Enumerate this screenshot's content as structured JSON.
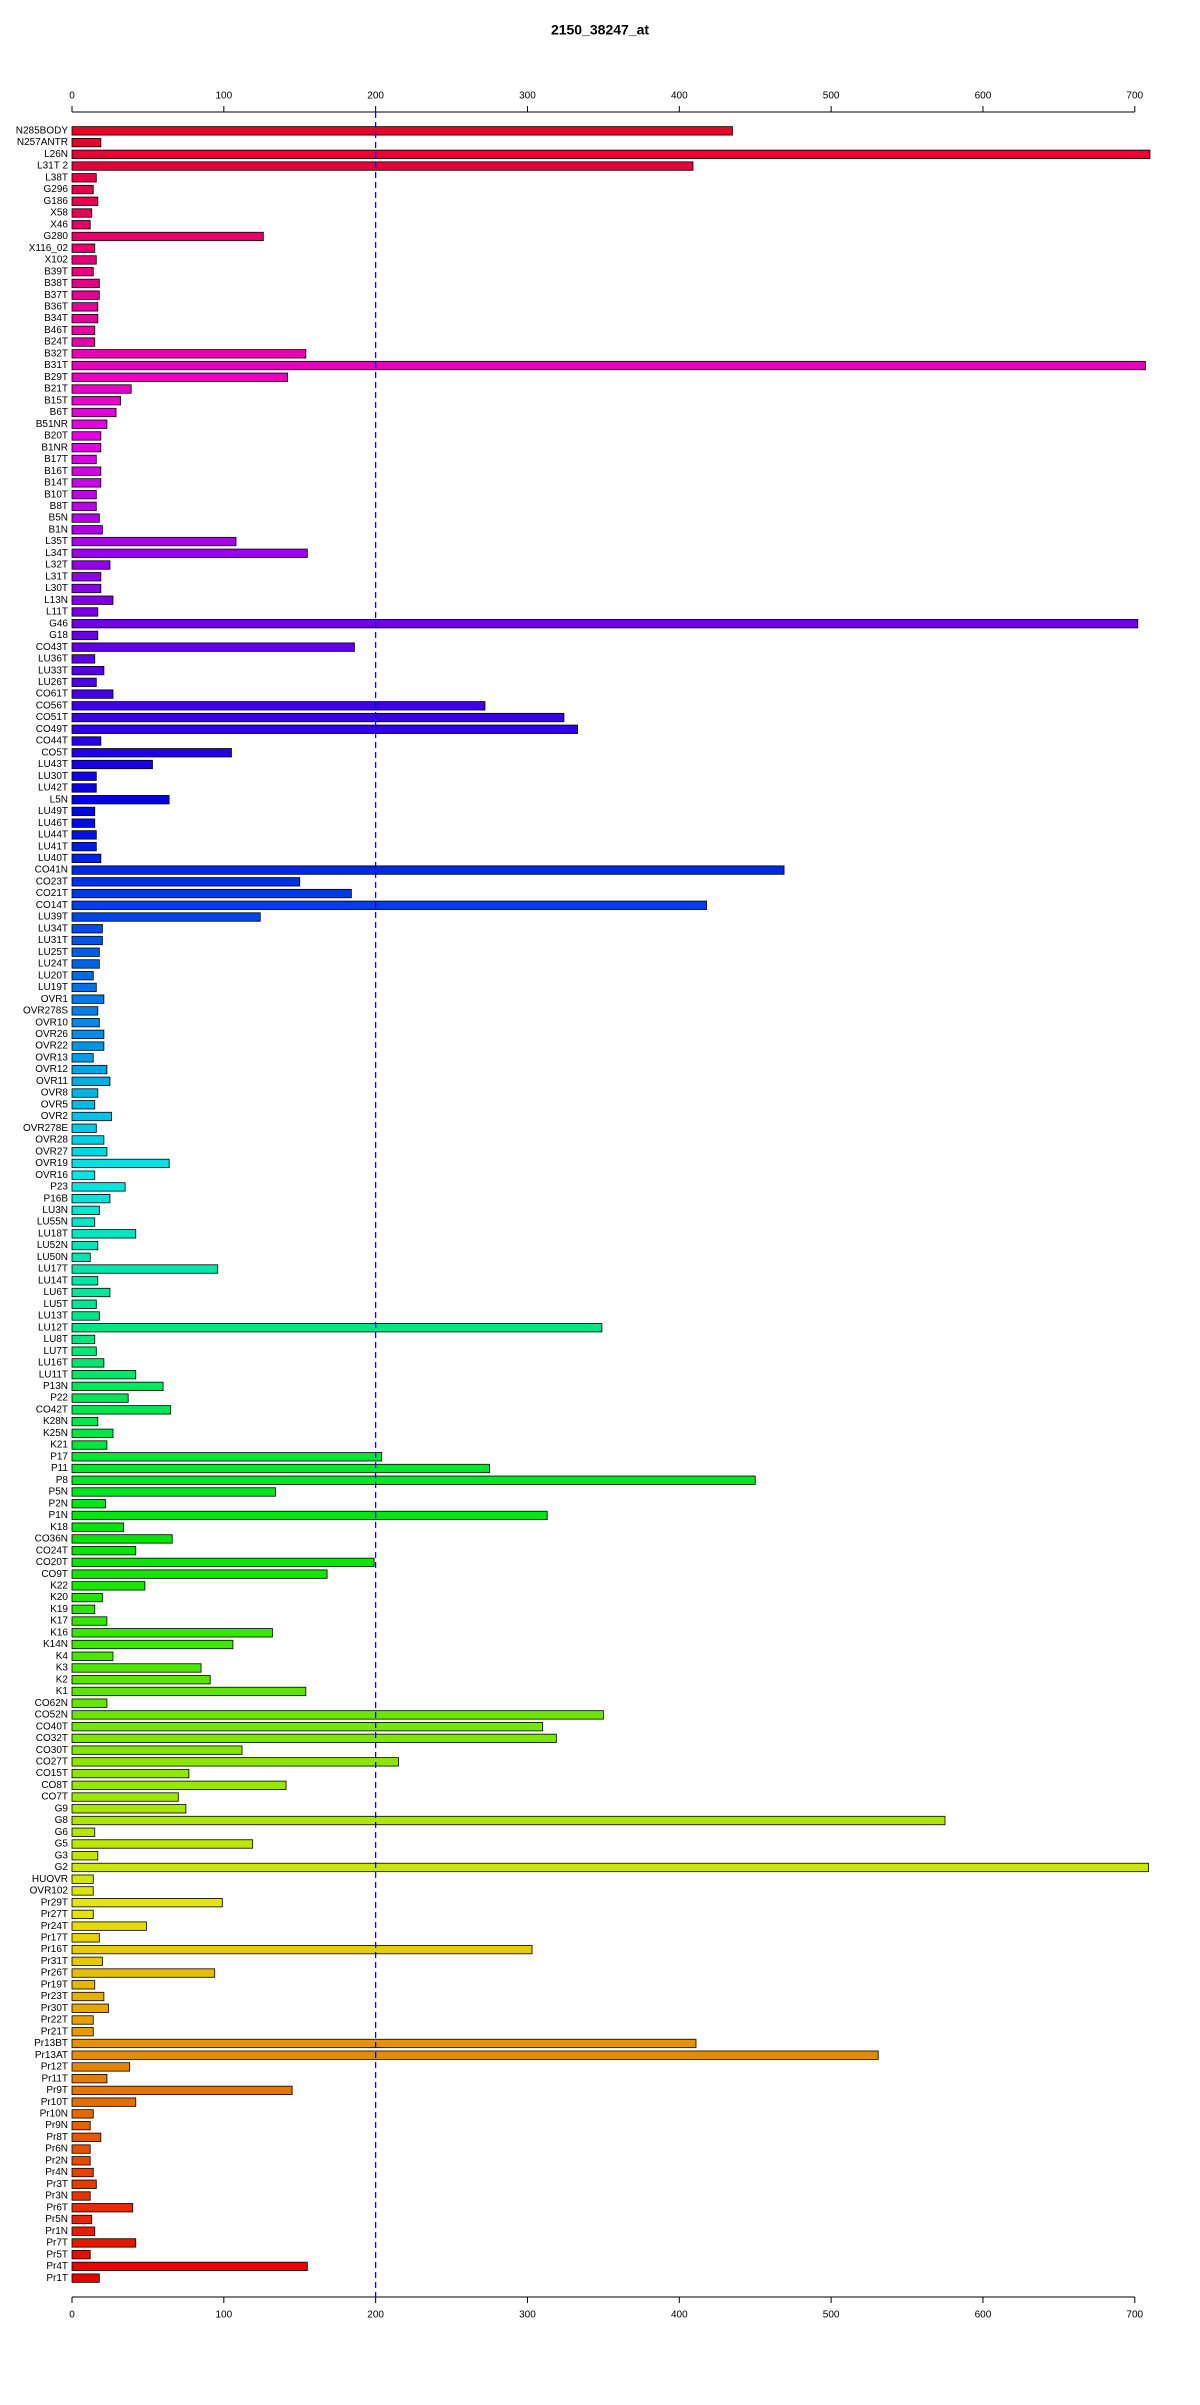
{
  "chart_data": {
    "type": "bar",
    "orientation": "horizontal",
    "title": "2150_38247_at",
    "categories": [
      "N285BODY",
      "N257ANTR",
      "L26N",
      "L31T 2",
      "L38T",
      "G296",
      "G186",
      "X58",
      "X46",
      "G280",
      "X116_02",
      "X102",
      "B39T",
      "B38T",
      "B37T",
      "B36T",
      "B34T",
      "B46T",
      "B24T",
      "B32T",
      "B31T",
      "B29T",
      "B21T",
      "B15T",
      "B6T",
      "B51NR",
      "B20T",
      "B1NR",
      "B17T",
      "B16T",
      "B14T",
      "B10T",
      "B8T",
      "B5N",
      "B1N",
      "L35T",
      "L34T",
      "L32T",
      "L31T",
      "L30T",
      "L13N",
      "L11T",
      "G46",
      "G18",
      "CO43T",
      "LU36T",
      "LU33T",
      "LU26T",
      "CO61T",
      "CO56T",
      "CO51T",
      "CO49T",
      "CO44T",
      "CO5T",
      "LU43T",
      "LU30T",
      "LU42T",
      "L5N",
      "LU49T",
      "LU46T",
      "LU44T",
      "LU41T",
      "LU40T",
      "CO41N",
      "CO23T",
      "CO21T",
      "CO14T",
      "LU39T",
      "LU34T",
      "LU31T",
      "LU25T",
      "LU24T",
      "LU20T",
      "LU19T",
      "OVR1",
      "OVR278S",
      "OVR10",
      "OVR26",
      "OVR22",
      "OVR13",
      "OVR12",
      "OVR11",
      "OVR8",
      "OVR5",
      "OVR2",
      "OVR278E",
      "OVR28",
      "OVR27",
      "OVR19",
      "OVR16",
      "P23",
      "P16B",
      "LU3N",
      "LU55N",
      "LU18T",
      "LU52N",
      "LU50N",
      "LU17T",
      "LU14T",
      "LU6T",
      "LU5T",
      "LU13T",
      "LU12T",
      "LU8T",
      "LU7T",
      "LU16T",
      "LU11T",
      "P13N",
      "P22",
      "CO42T",
      "K28N",
      "K25N",
      "K21",
      "P17",
      "P11",
      "P8",
      "P5N",
      "P2N",
      "P1N",
      "K18",
      "CO36N",
      "CO24T",
      "CO20T",
      "CO9T",
      "K22",
      "K20",
      "K19",
      "K17",
      "K16",
      "K14N",
      "K4",
      "K3",
      "K2",
      "K1",
      "CO62N",
      "CO52N",
      "CO40T",
      "CO32T",
      "CO30T",
      "CO27T",
      "CO15T",
      "CO8T",
      "CO7T",
      "G9",
      "G8",
      "G6",
      "G5",
      "G3",
      "G2",
      "HUOVR",
      "OVR102",
      "Pr29T",
      "Pr27T",
      "Pr24T",
      "Pr17T",
      "Pr16T",
      "Pr31T",
      "Pr26T",
      "Pr19T",
      "Pr23T",
      "Pr30T",
      "Pr22T",
      "Pr21T",
      "Pr13BT",
      "Pr13AT",
      "Pr12T",
      "Pr11T",
      "Pr9T",
      "Pr10T",
      "Pr10N",
      "Pr9N",
      "Pr8T",
      "Pr6N",
      "Pr2N",
      "Pr4N",
      "Pr3T",
      "Pr3N",
      "Pr6T",
      "Pr5N",
      "Pr1N",
      "Pr7T",
      "Pr5T",
      "Pr4T",
      "Pr1T"
    ],
    "values": [
      435,
      19,
      710,
      409,
      16,
      14,
      17,
      13,
      12,
      126,
      15,
      16,
      14,
      18,
      18,
      17,
      17,
      15,
      15,
      154,
      707,
      142,
      39,
      32,
      29,
      23,
      19,
      19,
      16,
      19,
      19,
      16,
      16,
      18,
      20,
      108,
      155,
      25,
      19,
      19,
      27,
      17,
      702,
      17,
      186,
      15,
      21,
      16,
      27,
      272,
      324,
      333,
      19,
      105,
      53,
      16,
      16,
      64,
      15,
      15,
      16,
      16,
      19,
      469,
      150,
      184,
      418,
      124,
      20,
      20,
      18,
      18,
      14,
      16,
      21,
      17,
      18,
      21,
      21,
      14,
      23,
      25,
      17,
      15,
      26,
      16,
      21,
      23,
      64,
      15,
      35,
      25,
      18,
      15,
      42,
      17,
      12,
      96,
      17,
      25,
      16,
      18,
      349,
      15,
      16,
      21,
      42,
      60,
      37,
      65,
      17,
      27,
      23,
      204,
      275,
      450,
      134,
      22,
      313,
      34,
      66,
      42,
      199,
      168,
      48,
      20,
      15,
      23,
      132,
      106,
      27,
      85,
      91,
      154,
      23,
      350,
      310,
      319,
      112,
      215,
      77,
      141,
      70,
      75,
      575,
      15,
      119,
      17,
      709,
      14,
      14,
      99,
      14,
      49,
      18,
      303,
      20,
      94,
      15,
      21,
      24,
      14,
      14,
      411,
      531,
      38,
      23,
      145,
      42,
      14,
      12,
      19,
      12,
      12,
      14,
      16,
      12,
      40,
      13,
      15,
      42,
      12,
      155,
      18
    ],
    "colors": [
      "#e60026",
      "#e6002d",
      "#e60035",
      "#e6003c",
      "#e60043",
      "#e6004b",
      "#e60052",
      "#e60059",
      "#e60061",
      "#e60068",
      "#e6006f",
      "#e60077",
      "#e6007e",
      "#e60085",
      "#e6008d",
      "#e60094",
      "#e6009b",
      "#e600a3",
      "#e600aa",
      "#e600b1",
      "#e600b9",
      "#e600c0",
      "#e600c7",
      "#e600cf",
      "#e600d6",
      "#e600dd",
      "#e600e5",
      "#e000e6",
      "#d800e6",
      "#d100e6",
      "#ca00e6",
      "#c200e6",
      "#bb00e6",
      "#b400e6",
      "#ac00e6",
      "#a500e6",
      "#9e00e6",
      "#9600e6",
      "#8f00e6",
      "#8800e6",
      "#8000e6",
      "#7900e6",
      "#7200e6",
      "#6a00e6",
      "#6300e6",
      "#5c00e6",
      "#5400e6",
      "#4d00e6",
      "#4600e6",
      "#3e00e6",
      "#3700e6",
      "#3000e6",
      "#2800e6",
      "#2100e6",
      "#1a00e6",
      "#1200e6",
      "#0b00e6",
      "#0400e6",
      "#0004e6",
      "#000be6",
      "#0012e6",
      "#001ae6",
      "#0021e6",
      "#0028e6",
      "#0030e6",
      "#0037e6",
      "#003ee6",
      "#0046e6",
      "#004de6",
      "#0054e6",
      "#005ce6",
      "#0063e6",
      "#006ae6",
      "#0072e6",
      "#0079e6",
      "#0080e6",
      "#0088e6",
      "#008fe6",
      "#0096e6",
      "#009ee6",
      "#00a5e6",
      "#00ace6",
      "#00b4e6",
      "#00bbe6",
      "#00c2e6",
      "#00cae6",
      "#00d1e6",
      "#00d8e6",
      "#00e0e6",
      "#00e6e5",
      "#00e6dd",
      "#00e6d6",
      "#00e6cf",
      "#00e6c7",
      "#00e6c0",
      "#00e6b9",
      "#00e6b1",
      "#00e6aa",
      "#00e6a3",
      "#00e69b",
      "#00e694",
      "#00e68d",
      "#00e685",
      "#00e67e",
      "#00e677",
      "#00e66f",
      "#00e668",
      "#00e661",
      "#00e659",
      "#00e652",
      "#00e64b",
      "#00e643",
      "#00e63c",
      "#00e635",
      "#00e62d",
      "#00e626",
      "#00e61f",
      "#00e617",
      "#00e610",
      "#00e609",
      "#01e600",
      "#06e600",
      "#0de600",
      "#14e600",
      "#1ce600",
      "#23e600",
      "#2ae600",
      "#32e600",
      "#39e600",
      "#40e600",
      "#48e600",
      "#4fe600",
      "#56e600",
      "#5ee600",
      "#65e600",
      "#6ce600",
      "#74e600",
      "#7be600",
      "#82e600",
      "#8ae600",
      "#91e600",
      "#98e600",
      "#a0e600",
      "#a7e600",
      "#aee600",
      "#b6e600",
      "#bde600",
      "#c4e600",
      "#cce600",
      "#d3e600",
      "#dae600",
      "#e2e600",
      "#e6e300",
      "#e6dc00",
      "#e6d400",
      "#e6cd00",
      "#e6c600",
      "#e6be00",
      "#e6b700",
      "#e6b000",
      "#e6a800",
      "#e6a100",
      "#e69a00",
      "#e69200",
      "#e68b00",
      "#e68400",
      "#e67c00",
      "#e67500",
      "#e66e00",
      "#e66600",
      "#e65f00",
      "#e65800",
      "#e65000",
      "#e64900",
      "#e64200",
      "#e63a00",
      "#e63300",
      "#e62c00",
      "#e62400",
      "#e61d00",
      "#e61600",
      "#e60e00",
      "#e60700",
      "#e60000"
    ],
    "xlim": [
      0,
      712
    ],
    "xticks": [
      0,
      100,
      200,
      300,
      400,
      500,
      600,
      700
    ],
    "reference_line": {
      "value": 200,
      "color": "#0000cc"
    }
  }
}
